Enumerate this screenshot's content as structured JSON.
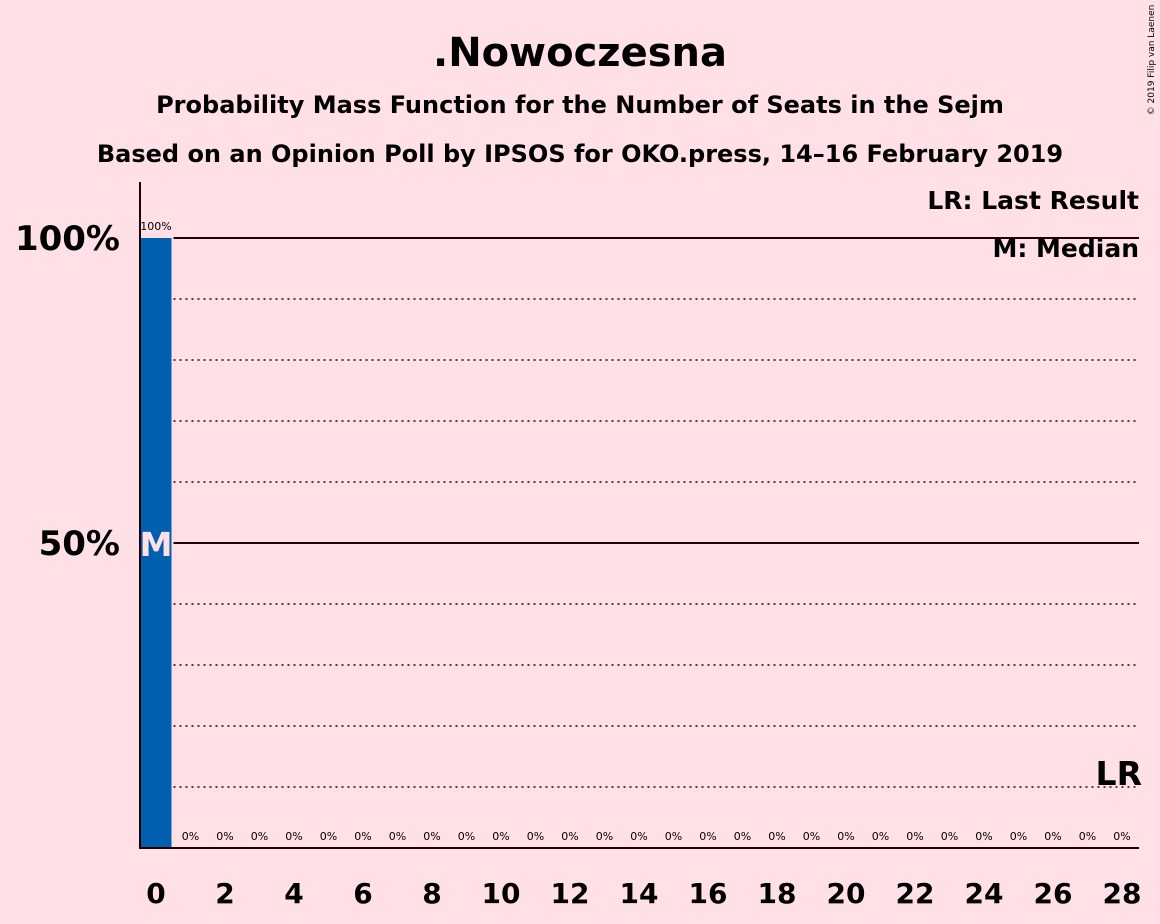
{
  "chart_data": {
    "type": "bar",
    "title": ".Nowoczesna",
    "subtitle": "Probability Mass Function for the Number of Seats in the Sejm",
    "subtitle2": "Based on an Opinion Poll by IPSOS for OKO.press, 14–16 February 2019",
    "copyright": "© 2019 Filip van Laenen",
    "x": [
      0,
      1,
      2,
      3,
      4,
      5,
      6,
      7,
      8,
      9,
      10,
      11,
      12,
      13,
      14,
      15,
      16,
      17,
      18,
      19,
      20,
      21,
      22,
      23,
      24,
      25,
      26,
      27,
      28
    ],
    "values": [
      100,
      0,
      0,
      0,
      0,
      0,
      0,
      0,
      0,
      0,
      0,
      0,
      0,
      0,
      0,
      0,
      0,
      0,
      0,
      0,
      0,
      0,
      0,
      0,
      0,
      0,
      0,
      0,
      0
    ],
    "value_labels": [
      "100%",
      "0%",
      "0%",
      "0%",
      "0%",
      "0%",
      "0%",
      "0%",
      "0%",
      "0%",
      "0%",
      "0%",
      "0%",
      "0%",
      "0%",
      "0%",
      "0%",
      "0%",
      "0%",
      "0%",
      "0%",
      "0%",
      "0%",
      "0%",
      "0%",
      "0%",
      "0%",
      "0%",
      "0%"
    ],
    "xticks": [
      0,
      2,
      4,
      6,
      8,
      10,
      12,
      14,
      16,
      18,
      20,
      22,
      24,
      26,
      28
    ],
    "yticks": [
      {
        "value": 50,
        "label": "50%"
      },
      {
        "value": 100,
        "label": "100%"
      }
    ],
    "ylim": [
      0,
      110
    ],
    "grid_dotted_step": 10,
    "median": 0,
    "median_label": "M",
    "last_result": 28,
    "last_result_label": "LR",
    "legend": [
      "LR: Last Result",
      "M: Median"
    ],
    "bar_color": "#0060AF",
    "background": "#FFE0E6"
  }
}
